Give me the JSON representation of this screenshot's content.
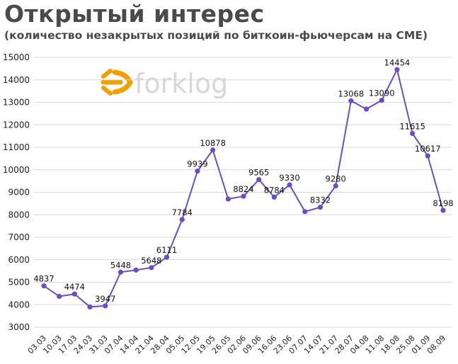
{
  "header": {
    "title": "Открытый интерес",
    "subtitle": "(количество незакрытых позиций по биткоин-фьючерсам на CME)"
  },
  "logo": {
    "text": "forklog",
    "icon": "forklog-arrow-icon",
    "accent": "#f0a000"
  },
  "colors": {
    "line": "#6a4fc2",
    "marker": "#6a4fc2",
    "grid": "#d8d8d8"
  },
  "chart_data": {
    "type": "line",
    "title": "Открытый интерес",
    "subtitle": "(количество незакрытых позиций по биткоин-фьючерсам на CME)",
    "xlabel": "",
    "ylabel": "",
    "ylim": [
      3000,
      15000
    ],
    "yticks": [
      3000,
      4000,
      5000,
      6000,
      7000,
      8000,
      9000,
      10000,
      11000,
      12000,
      13000,
      14000,
      15000
    ],
    "grid": true,
    "categories": [
      "03.03",
      "10.03",
      "17.03",
      "24.03",
      "31.03",
      "07.04",
      "14.04",
      "21.04",
      "28.04",
      "05.05",
      "12.05",
      "19.05",
      "26.05",
      "02.06",
      "09.06",
      "16.06",
      "23.06",
      "07.07",
      "14.07",
      "21.07",
      "28.07",
      "04.08",
      "11.08",
      "18.08",
      "25.08",
      "01.09",
      "08.09"
    ],
    "series": [
      {
        "values": [
          4837,
          4370,
          4474,
          3900,
          3947,
          5448,
          5540,
          5648,
          6111,
          7784,
          9939,
          10878,
          8700,
          8824,
          9565,
          8784,
          9330,
          8140,
          8332,
          9280,
          13068,
          12700,
          13090,
          14454,
          11615,
          10617,
          8198
        ],
        "labels": [
          "4837",
          "",
          "4474",
          "",
          "3947",
          "5448",
          "",
          "5648",
          "6111",
          "7784",
          "9939",
          "10878",
          "",
          "8824",
          "9565",
          "8784",
          "9330",
          "",
          "8332",
          "9280",
          "13068",
          "",
          "13090",
          "14454",
          "11615",
          "10617",
          "8198"
        ]
      }
    ]
  }
}
